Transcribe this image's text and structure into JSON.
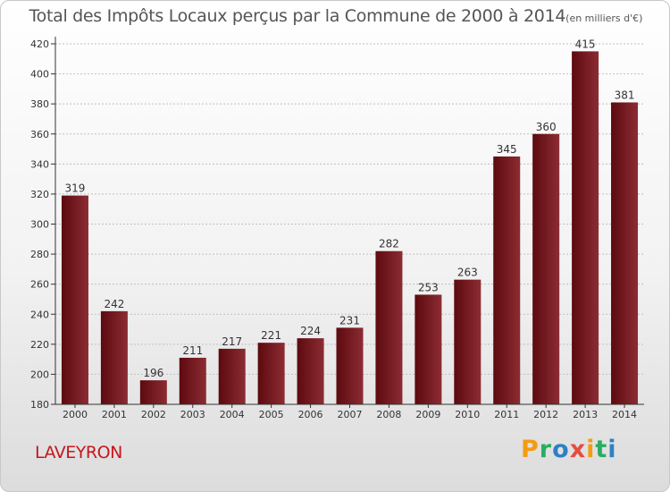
{
  "chart_data": {
    "type": "bar",
    "title": "Total des Impôts Locaux perçus par la Commune de 2000 à 2014",
    "unit_label": "(en milliers d'€)",
    "categories": [
      "2000",
      "2001",
      "2002",
      "2003",
      "2004",
      "2005",
      "2006",
      "2007",
      "2008",
      "2009",
      "2010",
      "2011",
      "2012",
      "2013",
      "2014"
    ],
    "values": [
      319,
      242,
      196,
      211,
      217,
      221,
      224,
      231,
      282,
      253,
      263,
      345,
      360,
      415,
      381
    ],
    "ylim": [
      180,
      420
    ],
    "yticks": [
      180,
      200,
      220,
      240,
      260,
      280,
      300,
      320,
      340,
      360,
      380,
      400,
      420
    ],
    "xlabel": "",
    "ylabel": "",
    "grid": "horizontal"
  },
  "footer": {
    "commune": "LAVEYRON",
    "brand_letters": [
      {
        "char": "P",
        "color": "#f39c12"
      },
      {
        "char": "r",
        "color": "#27ae60"
      },
      {
        "char": "o",
        "color": "#2f80c3"
      },
      {
        "char": "x",
        "color": "#e74c3c"
      },
      {
        "char": "i",
        "color": "#f39c12"
      },
      {
        "char": "t",
        "color": "#27ae60"
      },
      {
        "char": "i",
        "color": "#2f80c3"
      }
    ]
  },
  "colors": {
    "bar_dark": "#5c0a0f",
    "bar_light": "#8c2c33",
    "axis": "#333333",
    "grid": "#c0c0c0"
  }
}
